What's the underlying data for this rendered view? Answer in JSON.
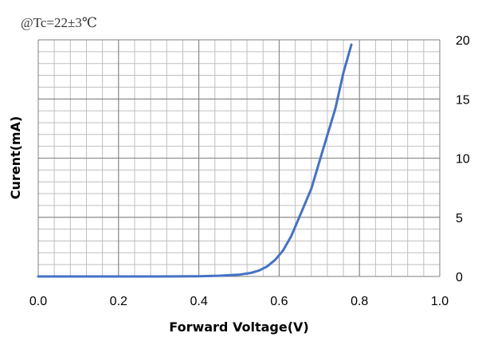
{
  "colors": {
    "series": "#4472C4",
    "major_grid": "#7F7F7F",
    "minor_grid": "#BFBFBF"
  },
  "chart_data": {
    "type": "line",
    "annotation": "@Tc=22±3℃",
    "xlabel": "Forward Voltage(V)",
    "ylabel": "Curent(mA)",
    "xlim": [
      0.0,
      1.0
    ],
    "ylim": [
      0,
      20
    ],
    "x_ticks": [
      "0.0",
      "0.2",
      "0.4",
      "0.6",
      "0.8",
      "1.0"
    ],
    "y_ticks": [
      "0",
      "5",
      "10",
      "15",
      "20"
    ],
    "y_axis_side": "right",
    "grid": true,
    "series": [
      {
        "x": [
          0.0,
          0.1,
          0.2,
          0.3,
          0.4,
          0.45,
          0.5,
          0.53,
          0.55,
          0.57,
          0.59,
          0.61,
          0.63,
          0.65,
          0.68,
          0.71,
          0.74,
          0.76,
          0.78
        ],
        "y": [
          0,
          0,
          0,
          0,
          0.02,
          0.06,
          0.15,
          0.3,
          0.5,
          0.85,
          1.4,
          2.2,
          3.4,
          5.0,
          7.4,
          10.8,
          14.2,
          17.2,
          19.6
        ]
      }
    ]
  }
}
